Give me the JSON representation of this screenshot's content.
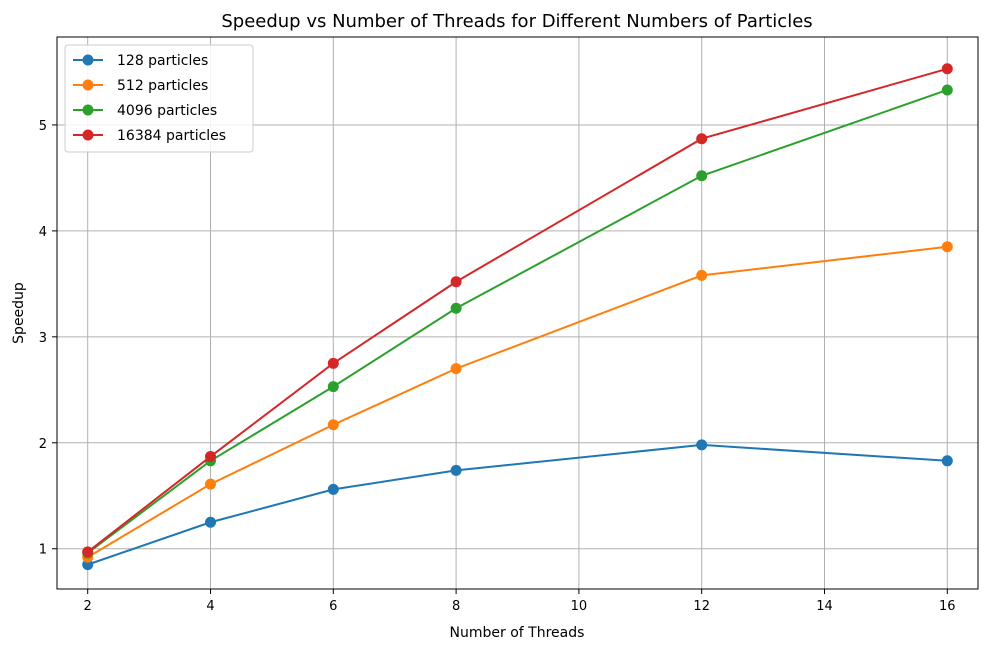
{
  "chart_data": {
    "type": "line",
    "title": "Speedup vs Number of Threads for Different Numbers of Particles",
    "xlabel": "Number of Threads",
    "ylabel": "Speedup",
    "x": [
      2,
      4,
      6,
      8,
      12,
      16
    ],
    "xlim": [
      1.5,
      16.5
    ],
    "ylim": [
      0.62,
      5.83
    ],
    "xticks": [
      2,
      4,
      6,
      8,
      10,
      12,
      14,
      16
    ],
    "yticks": [
      1,
      2,
      3,
      4,
      5
    ],
    "grid": true,
    "legend_position": "upper-left",
    "series": [
      {
        "name": "128 particles",
        "color": "#1f77b4",
        "values": [
          0.85,
          1.25,
          1.56,
          1.74,
          1.98,
          1.83
        ]
      },
      {
        "name": "512 particles",
        "color": "#ff7f0e",
        "values": [
          0.92,
          1.61,
          2.17,
          2.7,
          3.58,
          3.85
        ]
      },
      {
        "name": "4096 particles",
        "color": "#2ca02c",
        "values": [
          0.96,
          1.83,
          2.53,
          3.27,
          4.52,
          5.33
        ]
      },
      {
        "name": "16384 particles",
        "color": "#d62728",
        "values": [
          0.97,
          1.87,
          2.75,
          3.52,
          4.87,
          5.53
        ]
      }
    ]
  }
}
